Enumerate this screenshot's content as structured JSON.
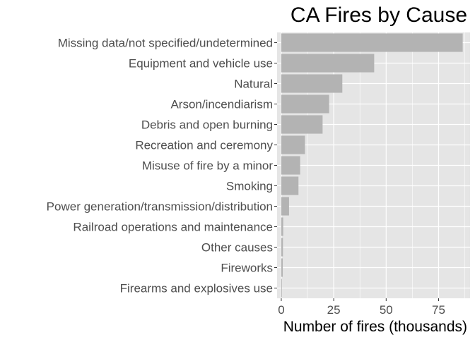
{
  "chart_data": {
    "type": "bar",
    "orientation": "horizontal",
    "title": "CA Fires by Cause",
    "xlabel": "Number of fires (thousands)",
    "ylabel": "",
    "categories": [
      "Missing data/not specified/undetermined",
      "Equipment and vehicle use",
      "Natural",
      "Arson/incendiarism",
      "Debris and open burning",
      "Recreation and ceremony",
      "Misuse of fire by a minor",
      "Smoking",
      "Power generation/transmission/distribution",
      "Railroad operations and maintenance",
      "Other causes",
      "Fireworks",
      "Firearms and explosives use"
    ],
    "values": [
      86.5,
      44.3,
      29.1,
      22.8,
      19.7,
      11.3,
      9.0,
      8.2,
      3.7,
      0.9,
      0.8,
      0.7,
      0.3
    ],
    "xlim": [
      -2,
      90
    ],
    "xticks": [
      0,
      25,
      50,
      75
    ],
    "xtick_labels": [
      "0",
      "25",
      "50",
      "75"
    ],
    "grid": true,
    "legend": "none",
    "colors": {
      "panel": "#e5e5e5",
      "grid_major": "#ffffff",
      "bar": "#b3b3b3",
      "text": "#4d4d4d",
      "title": "#000000"
    }
  }
}
